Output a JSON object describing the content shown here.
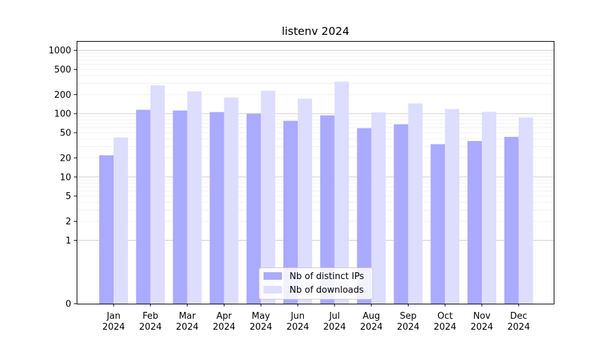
{
  "chart_data": {
    "type": "bar",
    "title": "listenv 2024",
    "xlabel": "",
    "ylabel": "",
    "yscale": "symlog",
    "ylim": [
      0,
      1400
    ],
    "yticks": [
      0,
      1,
      2,
      5,
      10,
      20,
      50,
      100,
      200,
      500,
      1000
    ],
    "ytick_labels": [
      "0",
      "1",
      "2",
      "5",
      "10",
      "20",
      "50",
      "100",
      "200",
      "500",
      "1000"
    ],
    "categories": [
      {
        "month": "Jan",
        "year": "2024"
      },
      {
        "month": "Feb",
        "year": "2024"
      },
      {
        "month": "Mar",
        "year": "2024"
      },
      {
        "month": "Apr",
        "year": "2024"
      },
      {
        "month": "May",
        "year": "2024"
      },
      {
        "month": "Jun",
        "year": "2024"
      },
      {
        "month": "Jul",
        "year": "2024"
      },
      {
        "month": "Aug",
        "year": "2024"
      },
      {
        "month": "Sep",
        "year": "2024"
      },
      {
        "month": "Oct",
        "year": "2024"
      },
      {
        "month": "Nov",
        "year": "2024"
      },
      {
        "month": "Dec",
        "year": "2024"
      }
    ],
    "series": [
      {
        "name": "Nb of distinct IPs",
        "color": "#aaaaff",
        "values": [
          22,
          115,
          112,
          106,
          100,
          77,
          94,
          59,
          68,
          33,
          37,
          43
        ]
      },
      {
        "name": "Nb of downloads",
        "color": "#ddddff",
        "values": [
          42,
          280,
          225,
          180,
          230,
          172,
          320,
          105,
          145,
          118,
          107,
          87
        ]
      }
    ],
    "grid": true,
    "legend_position": "bottom-center"
  }
}
